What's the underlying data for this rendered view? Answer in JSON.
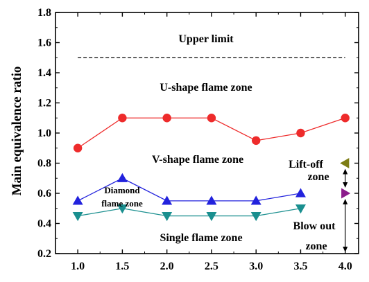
{
  "chart_data": {
    "type": "line",
    "xlabel": "",
    "ylabel": "Main equivalence ratio",
    "xlim": [
      0.75,
      4.15
    ],
    "ylim": [
      0.2,
      1.8
    ],
    "x_ticks": [
      "1.0",
      "1.5",
      "2.0",
      "2.5",
      "3.0",
      "3.5",
      "4.0"
    ],
    "x_tick_values": [
      1.0,
      1.5,
      2.0,
      2.5,
      3.0,
      3.5,
      4.0
    ],
    "y_ticks": [
      "0.2",
      "0.4",
      "0.6",
      "0.8",
      "1.0",
      "1.2",
      "1.4",
      "1.6",
      "1.8"
    ],
    "y_tick_values": [
      0.2,
      0.4,
      0.6,
      0.8,
      1.0,
      1.2,
      1.4,
      1.6,
      1.8
    ],
    "grid": false,
    "series": [
      {
        "marker": "circle",
        "color": "#ee2b2b",
        "x": [
          1.0,
          1.5,
          2.0,
          2.5,
          3.0,
          3.5,
          4.0
        ],
        "y": [
          0.9,
          1.1,
          1.1,
          1.1,
          0.95,
          1.0,
          1.1
        ]
      },
      {
        "marker": "triangle-up",
        "color": "#2222dd",
        "x": [
          1.0,
          1.5,
          2.0,
          2.5,
          3.0,
          3.5
        ],
        "y": [
          0.55,
          0.7,
          0.55,
          0.55,
          0.55,
          0.6
        ]
      },
      {
        "marker": "triangle-down",
        "color": "#1a8f8f",
        "x": [
          1.0,
          1.5,
          2.0,
          2.5,
          3.0,
          3.5
        ],
        "y": [
          0.45,
          0.5,
          0.45,
          0.45,
          0.45,
          0.5
        ]
      }
    ],
    "special_markers": [
      {
        "marker": "triangle-left",
        "color": "#7c7c14",
        "x": 4.0,
        "y": 0.8
      },
      {
        "marker": "triangle-right",
        "color": "#8b1c8b",
        "x": 4.0,
        "y": 0.6
      }
    ],
    "upper_limit": {
      "y": 1.5,
      "x_range": [
        1.0,
        4.0
      ],
      "style": "dashed"
    },
    "annotations": {
      "upper_limit": "Upper limit",
      "u_shape": "U-shape flame zone",
      "v_shape": "V-shape flame zone",
      "diamond_line1": "Diamond",
      "diamond_line2": "flame zone",
      "single": "Single flame zone",
      "liftoff_line1": "Lift-off",
      "liftoff_line2": "zone",
      "blowout_line1": "Blow out",
      "blowout_line2": "zone"
    }
  }
}
